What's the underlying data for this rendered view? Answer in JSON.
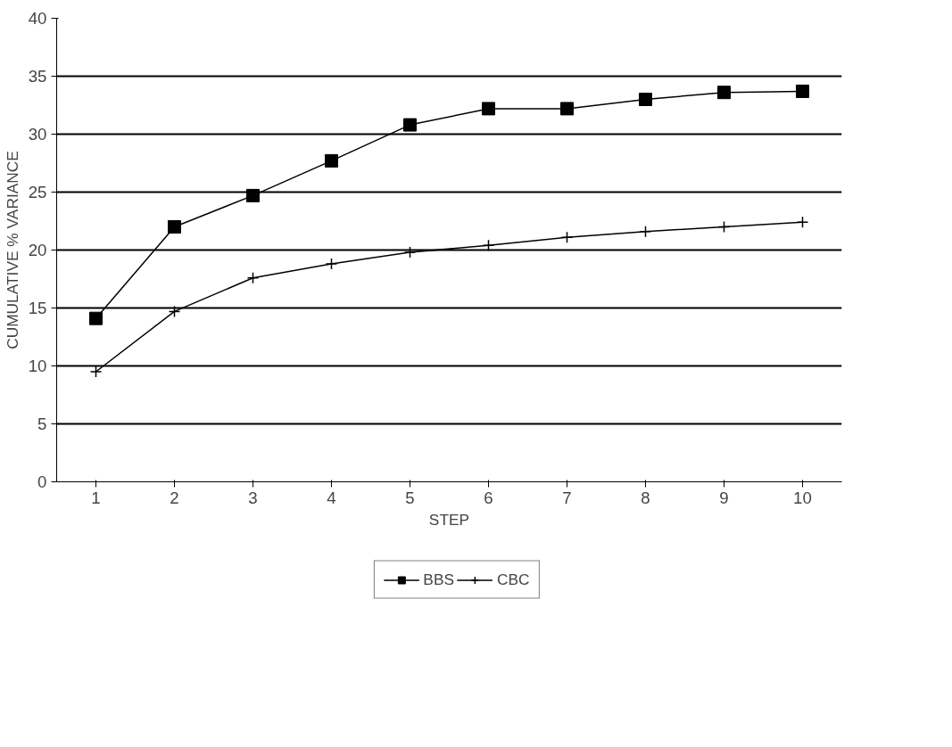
{
  "chart_data": {
    "type": "line",
    "xlabel": "STEP",
    "ylabel": "CUMULATIVE % VARIANCE",
    "x": [
      1,
      2,
      3,
      4,
      5,
      6,
      7,
      8,
      9,
      10
    ],
    "series": [
      {
        "name": "BBS",
        "color": "#000000",
        "marker": "square",
        "values": [
          14.1,
          22,
          24.7,
          27.7,
          30.8,
          32.2,
          32.2,
          33,
          33.6,
          33.7
        ]
      },
      {
        "name": "CBC",
        "color": "#000000",
        "marker": "cross",
        "values": [
          9.5,
          14.7,
          17.6,
          18.8,
          19.8,
          20.4,
          21.1,
          21.6,
          22,
          22.4
        ]
      }
    ],
    "xlim": [
      0.5,
      10.5
    ],
    "xticks": [
      1,
      2,
      3,
      4,
      5,
      6,
      7,
      8,
      9,
      10
    ],
    "ylim": [
      0,
      40
    ],
    "yticks": [
      0,
      5,
      10,
      15,
      20,
      25,
      30,
      35,
      40
    ],
    "grid": "y",
    "legend": "bottom",
    "line_style": "solid"
  }
}
